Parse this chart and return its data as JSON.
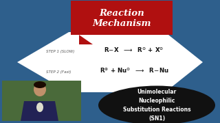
{
  "bg_color": "#2e5f8c",
  "title_box_color": "#b01010",
  "title_text": "Reaction\nMechanism",
  "title_color": "#ffffff",
  "white_shape_color": "#ffffff",
  "step1_label": "STEP 1 (SLOW)",
  "step2_label": "STEP 2 (Fast)",
  "oval_color": "#111111",
  "oval_text": "Unimolecular\nNucleophilic\nSubstitution Reactions\n(SN1)",
  "oval_text_color": "#ffffff",
  "step_label_color": "#555555",
  "eq_color": "#111111",
  "photo_bg": "#4a6a3a",
  "photo_shirt": "#222255",
  "photo_skin": "#c0906a"
}
